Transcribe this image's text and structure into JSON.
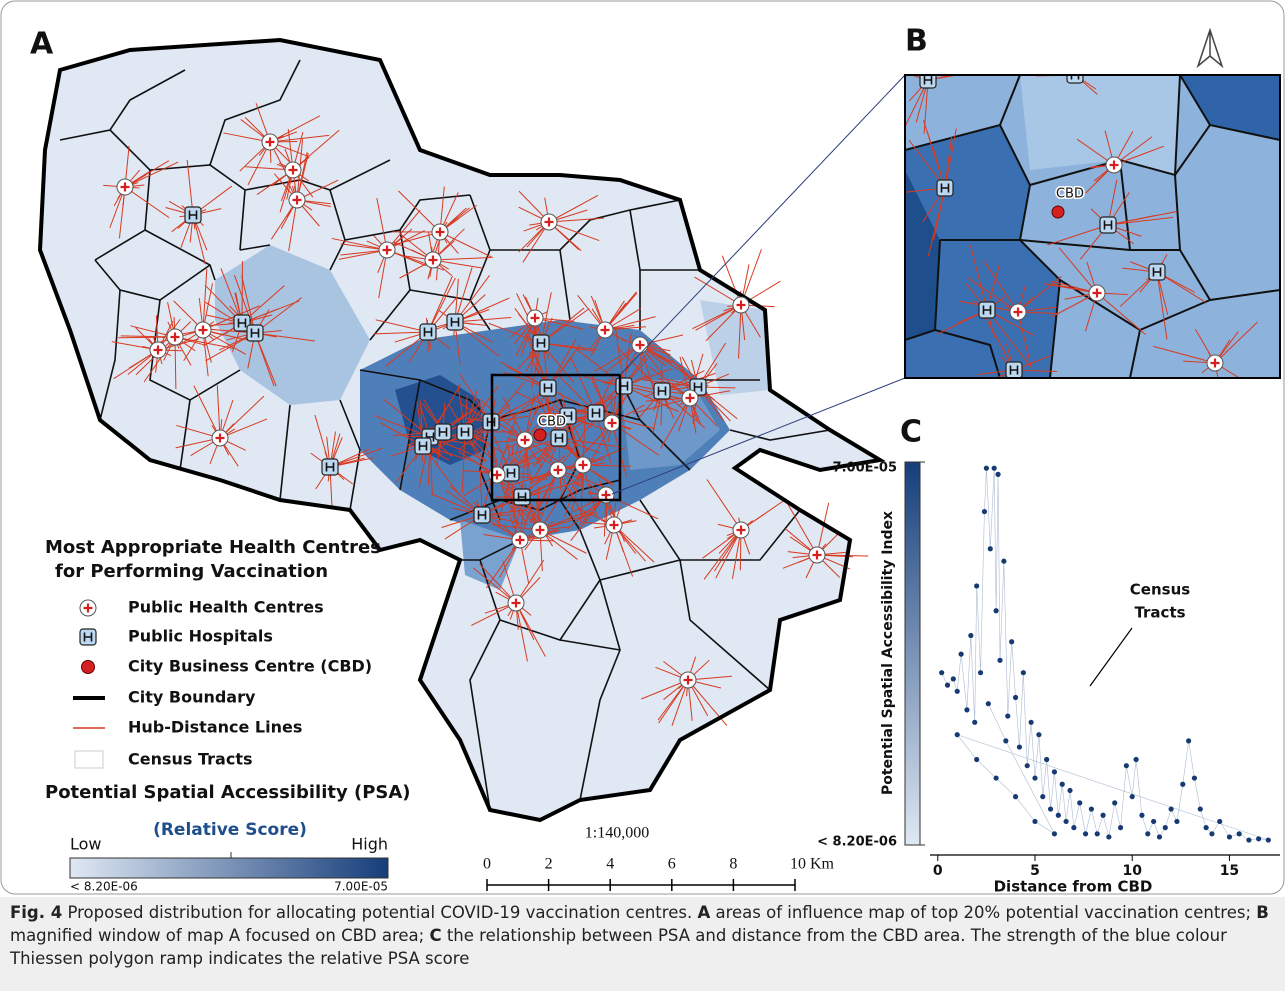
{
  "panel_a": {
    "label": "A",
    "cbd_label": "CBD",
    "legend": {
      "title": [
        "Most Appropriate Health Centres",
        "for Performing Vaccination"
      ],
      "items": [
        "Public Health Centres",
        "Public Hospitals",
        "City Business Centre (CBD)",
        "City Boundary",
        "Hub-Distance Lines",
        "Census Tracts"
      ],
      "psa_title": "Potential Spatial Accessibility (PSA)",
      "relative": "(Relative Score)",
      "low": "Low",
      "high": "High",
      "min_label": "< 8.20E-06",
      "max_label": "7.00E-05"
    },
    "scale_bar": {
      "ratio": "1:140,000",
      "lim": [
        0,
        10
      ],
      "ticks": [
        0,
        2,
        4,
        6,
        8,
        {
          "value": 10,
          "label": "10 Km"
        }
      ]
    }
  },
  "panel_b": {
    "label": "B",
    "cbd_label": "CBD"
  },
  "chart_data": {
    "type": "scatter",
    "panel_label": "C",
    "y_label": "Potential Spatial Accessibility Index",
    "x_label": "Distance from CBD",
    "annotation": [
      "Census",
      "Tracts"
    ],
    "x": [
      0.2,
      0.5,
      0.8,
      1.0,
      1.2,
      1.5,
      1.7,
      1.9,
      2.0,
      2.2,
      2.4,
      2.5,
      2.7,
      2.9,
      3.0,
      3.1,
      3.2,
      3.4,
      3.6,
      3.8,
      4.0,
      4.2,
      4.4,
      4.6,
      4.8,
      5.0,
      5.2,
      5.4,
      5.6,
      5.8,
      6.0,
      6.2,
      6.4,
      6.6,
      6.8,
      7.0,
      7.3,
      7.6,
      7.9,
      8.2,
      8.5,
      8.8,
      9.1,
      9.4,
      9.7,
      10.0,
      10.2,
      10.5,
      10.8,
      11.1,
      11.4,
      11.7,
      12.0,
      12.3,
      12.6,
      12.9,
      13.2,
      13.5,
      13.8,
      14.1,
      14.5,
      15.0,
      15.5,
      16.0,
      16.5,
      17.0,
      1.0,
      2.0,
      3.0,
      4.0,
      5.0,
      6.0,
      3.5,
      2.6
    ],
    "values": [
      3.6e-05,
      3.4e-05,
      3.5e-05,
      3.3e-05,
      3.9e-05,
      3e-05,
      4.2e-05,
      2.8e-05,
      5e-05,
      3.6e-05,
      6.2e-05,
      6.9e-05,
      5.6e-05,
      6.9e-05,
      4.6e-05,
      6.8e-05,
      3.8e-05,
      5.4e-05,
      2.9e-05,
      4.1e-05,
      3.2e-05,
      2.4e-05,
      3.6e-05,
      2.1e-05,
      2.8e-05,
      1.9e-05,
      2.6e-05,
      1.6e-05,
      2.2e-05,
      1.4e-05,
      2e-05,
      1.3e-05,
      1.8e-05,
      1.2e-05,
      1.7e-05,
      1.1e-05,
      1.5e-05,
      1e-05,
      1.4e-05,
      1e-05,
      1.3e-05,
      9.5e-06,
      1.5e-05,
      1.1e-05,
      2.1e-05,
      1.6e-05,
      2.2e-05,
      1.3e-05,
      1e-05,
      1.2e-05,
      9.5e-06,
      1.1e-05,
      1.4e-05,
      1.2e-05,
      1.8e-05,
      2.5e-05,
      1.9e-05,
      1.4e-05,
      1.1e-05,
      1e-05,
      1.2e-05,
      9.5e-06,
      1e-05,
      9e-06,
      9.2e-06,
      9e-06,
      2.6e-05,
      2.2e-05,
      1.9e-05,
      1.6e-05,
      1.2e-05,
      1e-05,
      2.5e-05,
      3.1e-05
    ],
    "color": "#173a73",
    "xlim": [
      -0.4,
      17.6
    ],
    "ylim": [
      8.2e-06,
      7e-05
    ],
    "xticks": [
      0,
      5,
      10,
      15
    ],
    "yticks": [
      {
        "value": 7e-05,
        "label": "7.00E-05"
      },
      {
        "value": 8.2e-06,
        "label": "< 8.20E-06"
      }
    ]
  },
  "caption": {
    "label": "Fig. 4",
    "parts": [
      " Proposed distribution for allocating potential COVID-19 vaccination centres. ",
      "A",
      " areas of influence map of top 20% potential vaccination centres; ",
      "B",
      " magnified window of map A focused on CBD area; ",
      "C",
      " the relationship between PSA and distance from the CBD area. The strength of the blue colour Thiessen polygon ramp indicates the relative PSA score"
    ]
  }
}
